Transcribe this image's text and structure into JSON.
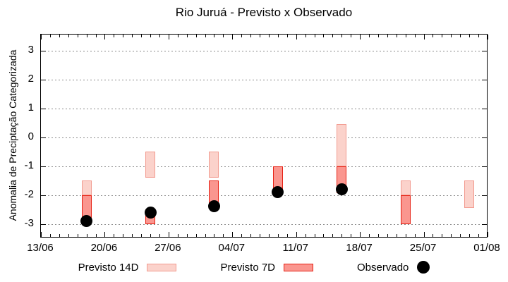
{
  "chart_data": {
    "type": "ranged-bar",
    "title": "Rio Juruá - Previsto x Observado",
    "ylabel": "Anomalia de Preciptação Categorizada",
    "xlabel": "",
    "grid": true,
    "legend_position": "bottom-center",
    "ylim": [
      -3.45,
      3.55
    ],
    "xlim_days": [
      0,
      49
    ],
    "yticks": [
      {
        "v": 3,
        "label": "3"
      },
      {
        "v": 2,
        "label": "2"
      },
      {
        "v": 1,
        "label": "1"
      },
      {
        "v": 0,
        "label": "0"
      },
      {
        "v": -1,
        "label": "-1"
      },
      {
        "v": -2,
        "label": "-2"
      },
      {
        "v": -3,
        "label": "-3"
      }
    ],
    "xticks_major": [
      {
        "day": 0,
        "label": "13/06"
      },
      {
        "day": 7,
        "label": "20/06"
      },
      {
        "day": 14,
        "label": "27/06"
      },
      {
        "day": 21,
        "label": "04/07"
      },
      {
        "day": 28,
        "label": "11/07"
      },
      {
        "day": 35,
        "label": "18/07"
      },
      {
        "day": 42,
        "label": "25/07"
      },
      {
        "day": 49,
        "label": "01/08"
      }
    ],
    "xtick_minor_step_days": 1,
    "colors": {
      "previsto14_fill": "#fbd2cb",
      "previsto14_border": "#f29b90",
      "previsto7_fill": "#fa968f",
      "previsto7_border": "#e62114",
      "observado": "#000000",
      "grid": "#8a8a8a",
      "frame": "#000000"
    },
    "legend": [
      {
        "label": "Previsto 14D",
        "swatch": "previsto14"
      },
      {
        "label": "Previsto 7D",
        "swatch": "previsto7"
      },
      {
        "label": "Observado",
        "swatch": "observado"
      }
    ],
    "series": [
      {
        "day": 5,
        "previsto14": [
          -1.5,
          -2.0
        ],
        "previsto7": [
          -2.0,
          -2.9
        ],
        "observado": -2.9
      },
      {
        "day": 12,
        "previsto14": [
          -0.5,
          -1.4
        ],
        "previsto7": [
          -2.5,
          -3.0
        ],
        "observado": -2.6
      },
      {
        "day": 19,
        "previsto14": [
          -0.5,
          -1.4
        ],
        "previsto7": [
          -1.5,
          -2.45
        ],
        "observado": -2.4
      },
      {
        "day": 26,
        "previsto14": null,
        "previsto7": [
          -1.0,
          -1.95
        ],
        "observado": -1.9
      },
      {
        "day": 33,
        "previsto14": [
          0.45,
          -1.0
        ],
        "previsto7": [
          -1.0,
          -1.95
        ],
        "observado": -1.8
      },
      {
        "day": 40,
        "previsto14": [
          -1.5,
          -2.0
        ],
        "previsto7": [
          -2.0,
          -3.0
        ],
        "observado": null
      },
      {
        "day": 47,
        "previsto14": [
          -1.5,
          -2.45
        ],
        "previsto7": null,
        "observado": null
      }
    ]
  }
}
